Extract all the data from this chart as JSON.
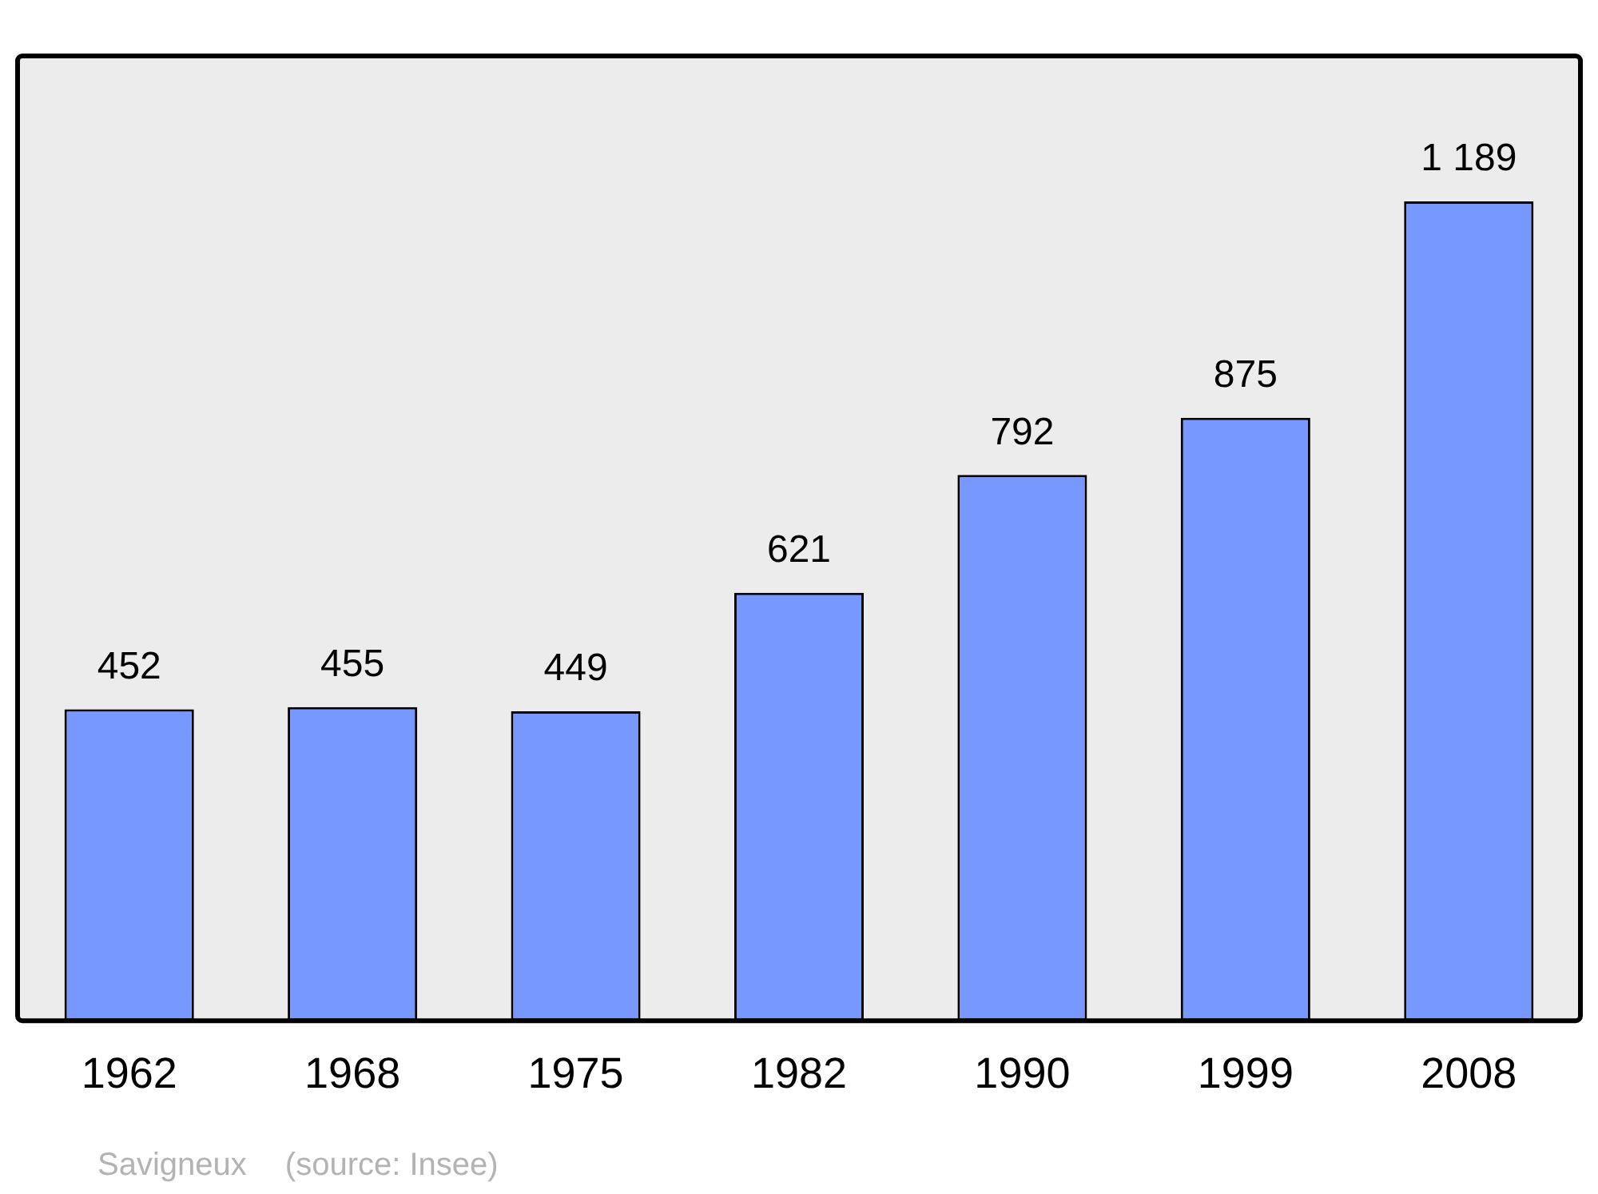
{
  "chart_data": {
    "type": "bar",
    "categories": [
      "1962",
      "1968",
      "1975",
      "1982",
      "1990",
      "1999",
      "2008"
    ],
    "values": [
      452,
      455,
      449,
      621,
      792,
      875,
      1189
    ],
    "value_labels": [
      "452",
      "455",
      "449",
      "621",
      "792",
      "875",
      "1 189"
    ],
    "color": "#7799ff",
    "legend": false,
    "annotations": [
      "Savigneux",
      "(source: Insee)"
    ]
  }
}
